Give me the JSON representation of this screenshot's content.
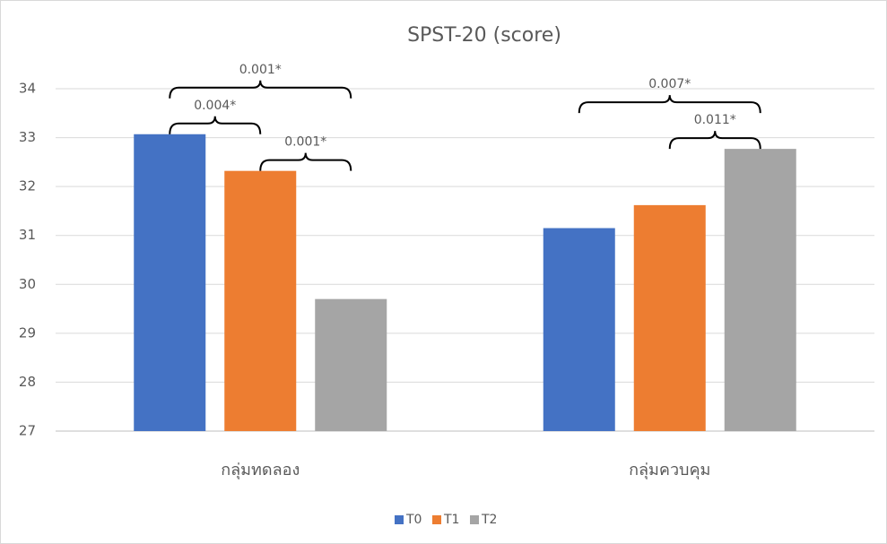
{
  "chart_data": {
    "type": "bar",
    "title": "SPST-20 (score)",
    "categories": [
      "กลุ่มทดลอง",
      "กลุ่มควบคุม"
    ],
    "series": [
      {
        "name": "T0",
        "color": "#4472c4",
        "values": [
          33.07,
          31.15
        ]
      },
      {
        "name": "T1",
        "color": "#ed7d31",
        "values": [
          32.32,
          31.62
        ]
      },
      {
        "name": "T2",
        "color": "#a5a5a5",
        "values": [
          29.7,
          32.77
        ]
      }
    ],
    "ylim": [
      27,
      34
    ],
    "yticks": [
      27,
      28,
      29,
      30,
      31,
      32,
      33,
      34
    ],
    "grid": true,
    "legend": "bottom",
    "annotations": [
      {
        "text": "0.001*",
        "category": "กลุ่มทดลอง",
        "between": [
          "T0",
          "T2"
        ]
      },
      {
        "text": "0.004*",
        "category": "กลุ่มทดลอง",
        "between": [
          "T0",
          "T1"
        ]
      },
      {
        "text": "0.001*",
        "category": "กลุ่มทดลอง",
        "between": [
          "T1",
          "T2"
        ]
      },
      {
        "text": "0.007*",
        "category": "กลุ่มควบคุม",
        "between": [
          "T0",
          "T2"
        ]
      },
      {
        "text": "0.011*",
        "category": "กลุ่มควบคุม",
        "between": [
          "T1",
          "T2"
        ]
      }
    ]
  }
}
